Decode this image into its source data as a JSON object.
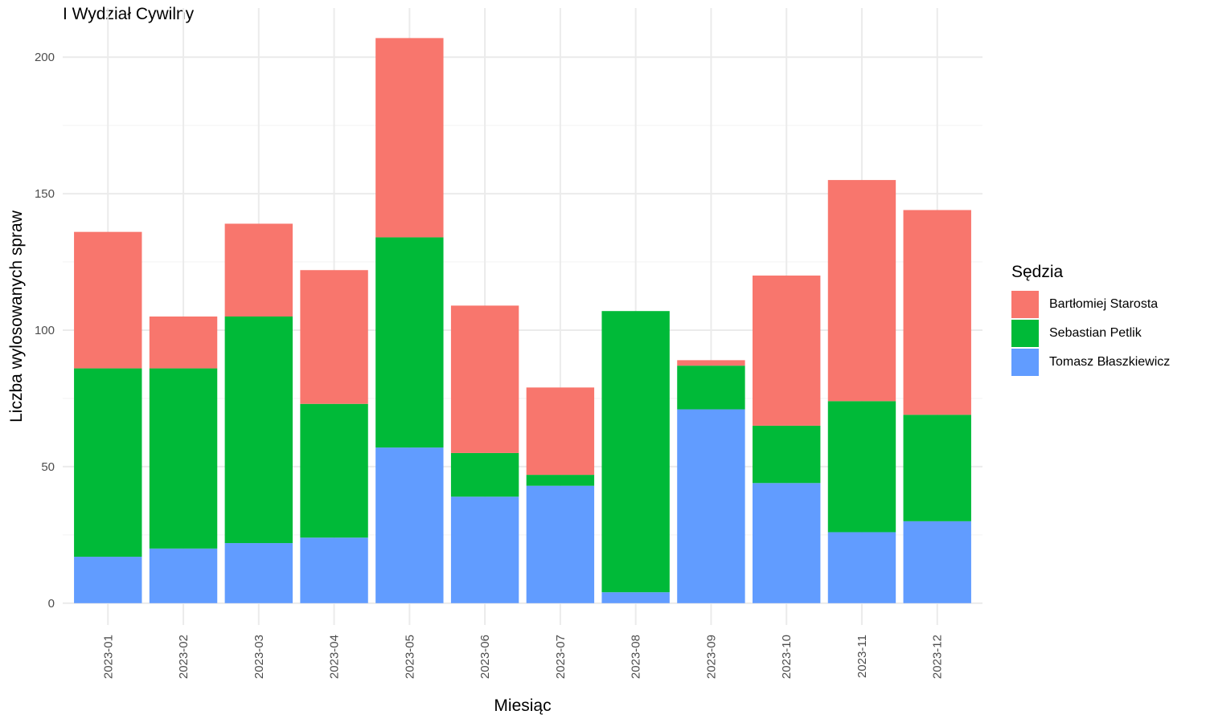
{
  "chart_data": {
    "type": "bar",
    "stacked": true,
    "title": "I Wydział Cywilny",
    "xlabel": "Miesiąc",
    "ylabel": "Liczba wylosowanych spraw",
    "ylim": [
      -8,
      218
    ],
    "yticks": [
      0,
      50,
      100,
      150,
      200
    ],
    "grid": true,
    "legend_position": "right",
    "legend_title": "Sędzia",
    "categories": [
      "2023-01",
      "2023-02",
      "2023-03",
      "2023-04",
      "2023-05",
      "2023-06",
      "2023-07",
      "2023-08",
      "2023-09",
      "2023-10",
      "2023-11",
      "2023-12"
    ],
    "series": [
      {
        "name": "Tomasz Błaszkiewicz",
        "color": "#619CFF",
        "values": [
          17,
          20,
          22,
          24,
          57,
          39,
          43,
          4,
          71,
          44,
          26,
          30
        ]
      },
      {
        "name": "Sebastian Petlik",
        "color": "#00BA38",
        "values": [
          69,
          66,
          83,
          49,
          77,
          16,
          4,
          103,
          16,
          21,
          48,
          39
        ]
      },
      {
        "name": "Bartłomiej Starosta",
        "color": "#F8766D",
        "values": [
          50,
          19,
          34,
          49,
          73,
          54,
          32,
          0,
          2,
          55,
          81,
          75
        ]
      }
    ],
    "legend_order": [
      "Bartłomiej Starosta",
      "Sebastian Petlik",
      "Tomasz Błaszkiewicz"
    ]
  }
}
